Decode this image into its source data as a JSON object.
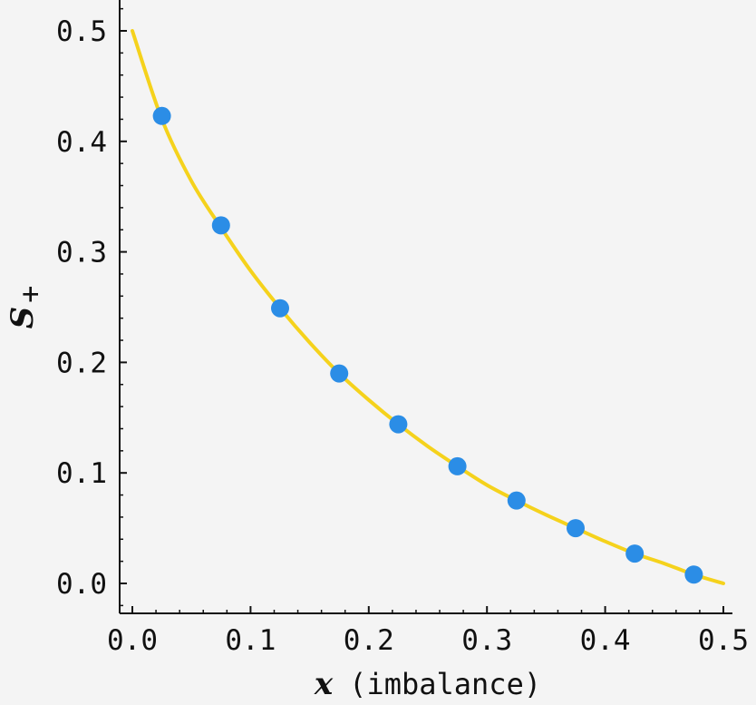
{
  "chart_data": {
    "type": "scatter",
    "title": "",
    "xlabel_var": "x",
    "xlabel_rest": "(imbalance)",
    "ylabel_var": "S",
    "ylabel_sub": "+",
    "xlim": [
      0.0,
      0.5
    ],
    "ylim": [
      0.0,
      0.5
    ],
    "x_ticks": [
      "0.0",
      "0.1",
      "0.2",
      "0.3",
      "0.4",
      "0.5"
    ],
    "y_ticks": [
      "0.0",
      "0.1",
      "0.2",
      "0.3",
      "0.4",
      "0.5"
    ],
    "grid": false,
    "series": [
      {
        "kind": "points",
        "color": "#2b8de6",
        "x": [
          0.025,
          0.075,
          0.125,
          0.175,
          0.225,
          0.275,
          0.325,
          0.375,
          0.425,
          0.475
        ],
        "y": [
          0.423,
          0.324,
          0.249,
          0.19,
          0.144,
          0.106,
          0.075,
          0.05,
          0.027,
          0.008
        ]
      },
      {
        "kind": "curve",
        "color": "#f5d21c",
        "x": [
          0.0,
          0.025,
          0.05,
          0.075,
          0.1,
          0.125,
          0.15,
          0.175,
          0.2,
          0.225,
          0.25,
          0.275,
          0.3,
          0.325,
          0.35,
          0.375,
          0.4,
          0.425,
          0.45,
          0.475,
          0.5
        ],
        "y": [
          0.5,
          0.42,
          0.364,
          0.322,
          0.283,
          0.249,
          0.218,
          0.19,
          0.166,
          0.144,
          0.124,
          0.106,
          0.089,
          0.075,
          0.062,
          0.05,
          0.038,
          0.027,
          0.018,
          0.008,
          0.0
        ]
      }
    ]
  }
}
